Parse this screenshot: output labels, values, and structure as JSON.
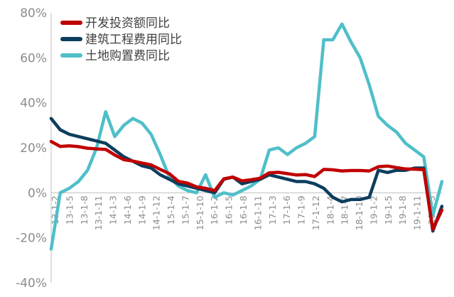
{
  "chart_data": {
    "type": "line",
    "title": "",
    "xlabel": "",
    "ylabel": "",
    "ylim": [
      -40,
      80
    ],
    "yticks": [
      "80%",
      "60%",
      "40%",
      "20%",
      "0%",
      "-20%",
      "-40%"
    ],
    "ytick_values": [
      80,
      60,
      40,
      20,
      0,
      -20,
      -40
    ],
    "x": [
      "13-1-2",
      "13-3",
      "13-5",
      "13-7",
      "13-9",
      "13-11",
      "14-1-2",
      "14-3",
      "14-5",
      "14-7",
      "14-9",
      "14-11",
      "15-1-2",
      "15-3",
      "15-5",
      "15-7",
      "15-9",
      "15-11",
      "16-1-2",
      "16-3",
      "16-5",
      "16-7",
      "16-9",
      "16-11",
      "17-1-2",
      "17-3",
      "17-5",
      "17-7",
      "17-9",
      "17-11",
      "18-1-2",
      "18-3",
      "18-5",
      "18-7",
      "18-9",
      "18-11",
      "19-1-2",
      "19-3",
      "19-5",
      "19-7",
      "19-9",
      "19-11",
      "20-1-2",
      "20-3"
    ],
    "xtick_labels": [
      "13-1-2",
      "13-1-5",
      "13-1-8",
      "13-1-11",
      "14-1-3",
      "14-1-6",
      "14-1-9",
      "14-1-12",
      "15-1-4",
      "15-1-7",
      "15-1-10",
      "16-1-2",
      "16-1-5",
      "16-1-8",
      "16-1-11",
      "17-1-3",
      "17-1-6",
      "17-1-9",
      "17-1-12",
      "18-1-4",
      "18-1-7",
      "18-1-10",
      "19-1-2",
      "19-1-5",
      "19-1-8",
      "19-1-11",
      "20-1-3"
    ],
    "series": [
      {
        "name": "开发投资额同比",
        "color": "#c00000",
        "values": [
          22.8,
          20.6,
          20.9,
          20.5,
          19.8,
          19.5,
          19.3,
          16.8,
          14.7,
          14.1,
          13.2,
          12.4,
          10.4,
          8.5,
          5.1,
          4.3,
          2.6,
          2.0,
          1.0,
          6.2,
          7.0,
          5.3,
          5.8,
          6.5,
          8.9,
          9.1,
          8.5,
          7.9,
          8.1,
          7.2,
          10.4,
          10.2,
          9.7,
          9.9,
          9.9,
          9.7,
          11.6,
          11.9,
          11.2,
          10.6,
          10.5,
          10.3,
          -16.3,
          -7.7
        ]
      },
      {
        "name": "建筑工程费用同比",
        "color": "#0c3d5e",
        "values": [
          33,
          28,
          26,
          25,
          24,
          23,
          22,
          19,
          16,
          14,
          12,
          11,
          8,
          6,
          4,
          3,
          2,
          1,
          0,
          6,
          7,
          4,
          5,
          6,
          8,
          7,
          6,
          5,
          5,
          4,
          2,
          -2,
          -4,
          -3,
          -3,
          -2,
          10,
          9,
          10,
          10,
          11,
          11,
          -17,
          -6
        ]
      },
      {
        "name": "土地购置费同比",
        "color": "#4fbfc9",
        "values": [
          -25,
          0,
          2,
          5,
          10,
          20,
          36,
          25,
          30,
          33,
          31,
          26,
          17,
          7,
          3,
          1,
          0,
          8,
          -2,
          0,
          -1,
          1,
          3,
          6,
          19,
          20,
          17,
          20,
          22,
          25,
          68,
          68,
          75,
          67,
          60,
          48,
          34,
          30,
          27,
          22,
          19,
          16,
          -10,
          5
        ]
      }
    ]
  }
}
